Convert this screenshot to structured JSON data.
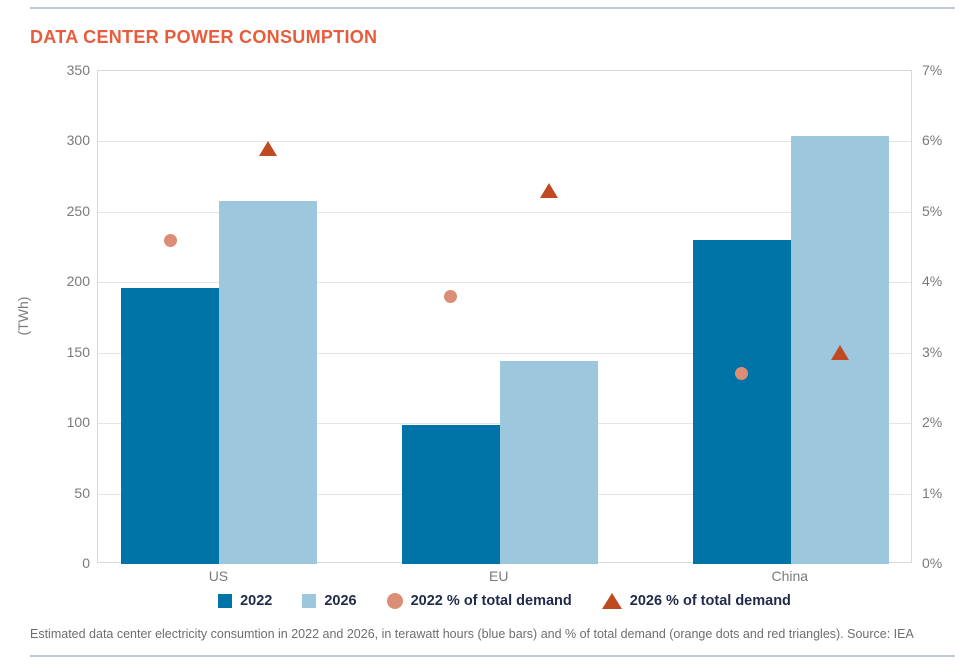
{
  "page": {
    "title": "DATA CENTER POWER CONSUMPTION",
    "caption": "Estimated data center electricity consumtion in 2022 and 2026, in terawatt hours (blue bars) and % of total demand (orange dots and red triangles). Source: IEA"
  },
  "colors": {
    "title": "#e85c3c",
    "bar_2022": "#0074a6",
    "bar_2026": "#9cc7dd",
    "dot_2022_pct": "#db8e75",
    "triangle_2026_pct": "#bf4a21",
    "legend_text": "#1f2b49",
    "axis_text": "#7a7a7a",
    "gridline": "#e4e4e4",
    "divider_rule": "#bfc8da"
  },
  "legend": {
    "items": [
      {
        "label": "2022",
        "marker": "square",
        "color_key": "bar_2022"
      },
      {
        "label": "2026",
        "marker": "square",
        "color_key": "bar_2026"
      },
      {
        "label": "2022 % of total demand",
        "marker": "circle",
        "color_key": "dot_2022_pct"
      },
      {
        "label": "2026 % of total demand",
        "marker": "triangle",
        "color_key": "triangle_2026_pct"
      }
    ]
  },
  "chart_data": {
    "type": "bar",
    "subtype": "grouped bars with secondary-axis scatter markers",
    "title": "DATA CENTER POWER CONSUMPTION",
    "categories": [
      "US",
      "EU",
      "China"
    ],
    "series": [
      {
        "name": "2022",
        "type": "bar",
        "axis": "left",
        "unit": "TWh",
        "values": [
          196,
          99,
          230
        ]
      },
      {
        "name": "2026",
        "type": "bar",
        "axis": "left",
        "unit": "TWh",
        "values": [
          258,
          144,
          304
        ]
      },
      {
        "name": "2022 % of total demand",
        "type": "scatter",
        "marker": "circle",
        "axis": "right",
        "unit": "%",
        "values": [
          4.6,
          3.8,
          2.7
        ]
      },
      {
        "name": "2026 % of total demand",
        "type": "scatter",
        "marker": "triangle",
        "axis": "right",
        "unit": "%",
        "values": [
          5.9,
          5.3,
          3.0
        ]
      }
    ],
    "ylabel_left": "(TWh)",
    "left_axis": {
      "min": 0,
      "max": 350,
      "tick_step": 50,
      "tick_labels": [
        "0",
        "50",
        "100",
        "150",
        "200",
        "250",
        "300",
        "350"
      ]
    },
    "right_axis": {
      "min": 0,
      "max": 7,
      "tick_step": 1,
      "tick_labels": [
        "0%",
        "1%",
        "2%",
        "3%",
        "4%",
        "5%",
        "6%",
        "7%"
      ]
    },
    "grid": true,
    "legend_position": "bottom",
    "source": "IEA"
  }
}
